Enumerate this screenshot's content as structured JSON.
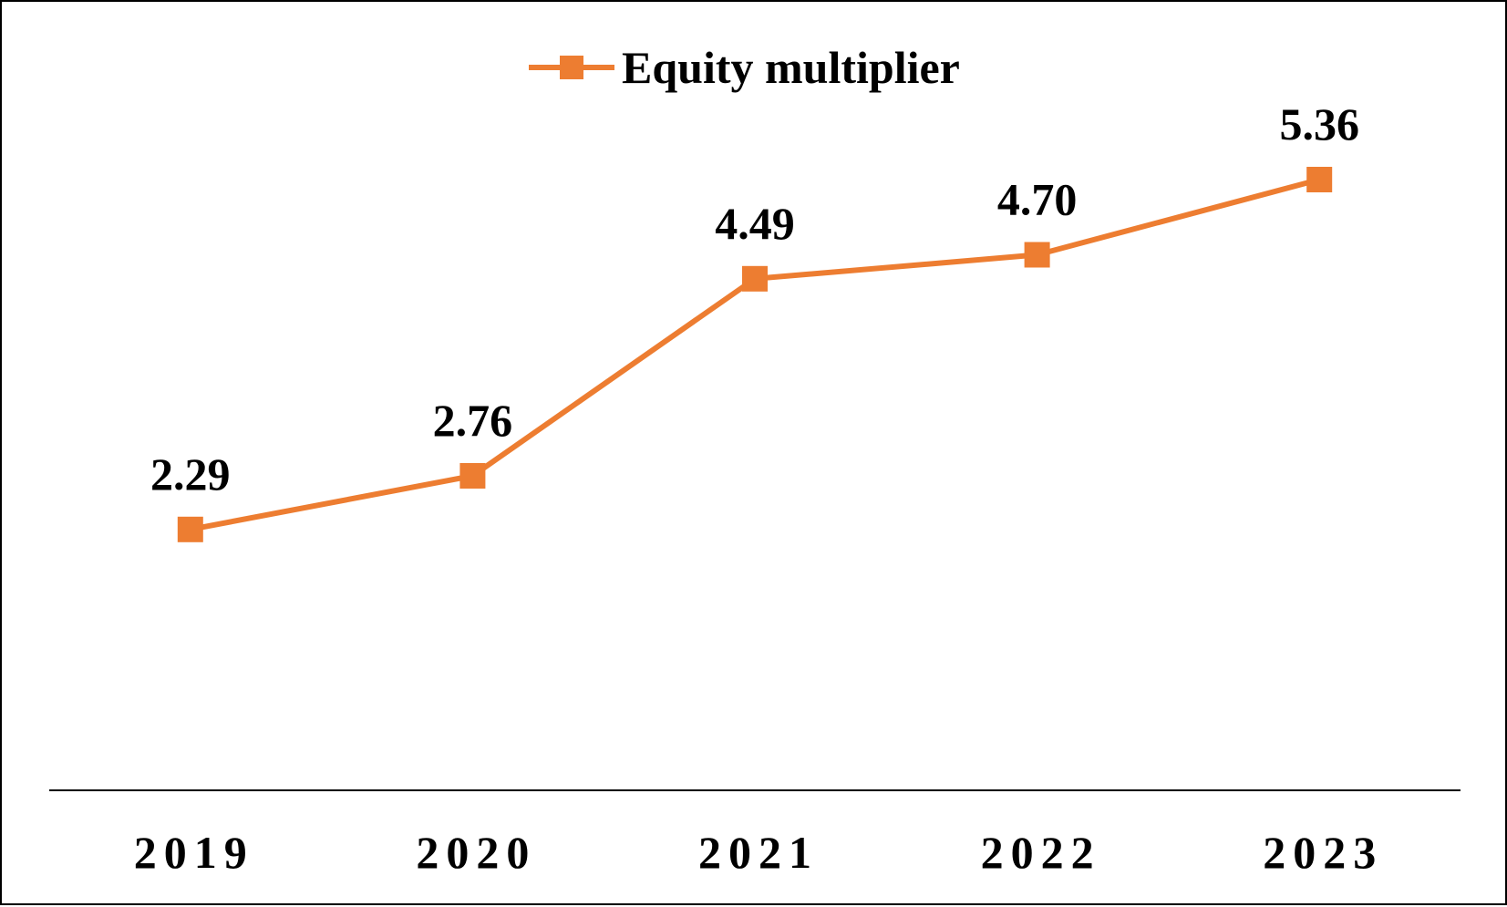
{
  "chart_data": {
    "type": "line",
    "categories": [
      "2019",
      "2020",
      "2021",
      "2022",
      "2023"
    ],
    "series": [
      {
        "name": "Equity multiplier",
        "values": [
          2.29,
          2.76,
          4.49,
          4.7,
          5.36
        ],
        "labels": [
          "2.29",
          "2.76",
          "4.49",
          "4.70",
          "5.36"
        ],
        "color": "#ED7D31",
        "marker": "square"
      }
    ],
    "ylim": [
      0,
      7
    ],
    "grid": false,
    "legend_position": "top"
  }
}
